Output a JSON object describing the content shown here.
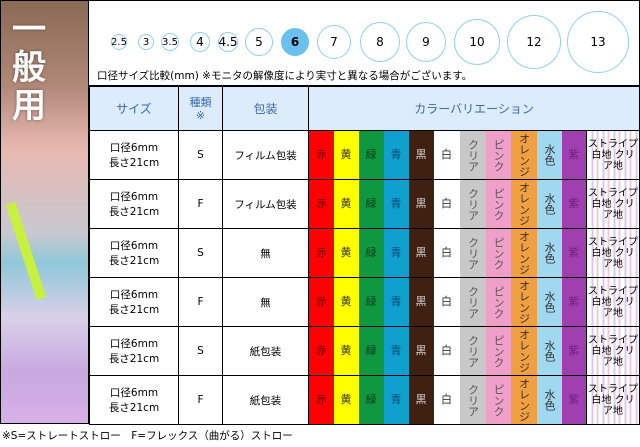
{
  "side_title": [
    "一",
    "般",
    "用"
  ],
  "sizes": [
    "2.5",
    "3",
    "3.5",
    "4",
    "4.5",
    "5",
    "6",
    "7",
    "8",
    "9",
    "10",
    "12",
    "13"
  ],
  "selected_size": "6",
  "size_note": "口径サイズ比較(mm) ※モニタの解像度により実寸と異なる場合がございます。",
  "headers": {
    "size": "サイズ",
    "type": "種類",
    "type_mark": "※",
    "packaging": "包装",
    "colors": "カラーバリエーション"
  },
  "colors": [
    {
      "label": "赤",
      "bg": "#ff0000",
      "fg": "#6a0000"
    },
    {
      "label": "黄",
      "bg": "#ffff00",
      "fg": "#333"
    },
    {
      "label": "緑",
      "bg": "#109840",
      "fg": "#0a4020"
    },
    {
      "label": "青",
      "bg": "#10a0d0",
      "fg": "#0a4a70"
    },
    {
      "label": "黒",
      "bg": "#402010",
      "fg": "#ccc"
    },
    {
      "label": "白",
      "bg": "#ffffff",
      "fg": "#333"
    },
    {
      "label": "クリア",
      "bg": "#c8c8c8",
      "fg": "#555"
    },
    {
      "label": "ピンク",
      "bg": "#f0a0c8",
      "fg": "#555"
    },
    {
      "label": "オレンジ",
      "bg": "#f0a040",
      "fg": "#333"
    },
    {
      "label": "水色",
      "bg": "#a0d8f0",
      "fg": "#333"
    },
    {
      "label": "紫",
      "bg": "#a040b0",
      "fg": "#702080"
    }
  ],
  "stripe": {
    "line1": "ストライプ",
    "a": "白地",
    "b": "クリア地"
  },
  "rows": [
    {
      "size1": "口径6mm",
      "size2": "長さ21cm",
      "type": "S",
      "packaging": "フィルム包装"
    },
    {
      "size1": "口径6mm",
      "size2": "長さ21cm",
      "type": "F",
      "packaging": "フィルム包装"
    },
    {
      "size1": "口径6mm",
      "size2": "長さ21cm",
      "type": "S",
      "packaging": "無"
    },
    {
      "size1": "口径6mm",
      "size2": "長さ21cm",
      "type": "F",
      "packaging": "無"
    },
    {
      "size1": "口径6mm",
      "size2": "長さ21cm",
      "type": "S",
      "packaging": "紙包装"
    },
    {
      "size1": "口径6mm",
      "size2": "長さ21cm",
      "type": "F",
      "packaging": "紙包装"
    }
  ],
  "footer": "※S=ストレートストロー　F=フレックス（曲がる）ストロー"
}
